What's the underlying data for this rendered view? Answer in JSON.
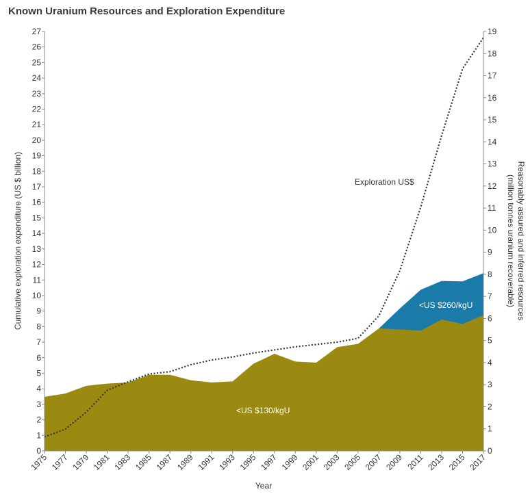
{
  "chart_data": {
    "type": "area",
    "title": "Known Uranium Resources and Exploration Expenditure",
    "xlabel": "Year",
    "ylabel_left": "Cumulative exploration expenditure (US $ billion)",
    "ylabel_right_line1": "Reasonably assured and inferred resources",
    "ylabel_right_line2": "(million tonnes uranium recoverable)",
    "ylim_left": [
      0,
      27
    ],
    "ylim_right": [
      0,
      19
    ],
    "x_ticks": [
      "1975",
      "1977",
      "1979",
      "1981",
      "1983",
      "1985",
      "1987",
      "1989",
      "1991",
      "1993",
      "1995",
      "1997",
      "1999",
      "2001",
      "2003",
      "2005",
      "2007",
      "2009",
      "2011",
      "2013",
      "2015",
      "2017"
    ],
    "left_ticks": [
      "0",
      "1",
      "2",
      "3",
      "4",
      "5",
      "6",
      "7",
      "8",
      "9",
      "10",
      "11",
      "12",
      "13",
      "14",
      "15",
      "16",
      "17",
      "18",
      "19",
      "20",
      "21",
      "22",
      "23",
      "24",
      "25",
      "26",
      "27"
    ],
    "right_ticks": [
      "0",
      "1",
      "2",
      "3",
      "4",
      "5",
      "6",
      "7",
      "8",
      "9",
      "10",
      "11",
      "12",
      "13",
      "14",
      "15",
      "16",
      "17",
      "18",
      "19"
    ],
    "series": [
      {
        "name": "<US $130/kgU",
        "kind": "area",
        "axis": "right",
        "color": "#9a8a12",
        "x": [
          1975,
          1977,
          1979,
          1981,
          1983,
          1985,
          1987,
          1989,
          1991,
          1993,
          1995,
          1997,
          1999,
          2001,
          2003,
          2005,
          2007,
          2009,
          2011,
          2013,
          2015,
          2017
        ],
        "values": [
          2.45,
          2.6,
          2.95,
          3.05,
          3.1,
          3.45,
          3.45,
          3.2,
          3.1,
          3.15,
          3.95,
          4.4,
          4.05,
          4.0,
          4.7,
          4.85,
          5.55,
          5.5,
          5.45,
          5.95,
          5.75,
          6.15
        ]
      },
      {
        "name": "<US $260/kgU",
        "kind": "area",
        "axis": "right",
        "color": "#1a7aa8",
        "x": [
          2007,
          2009,
          2011,
          2013,
          2015,
          2017
        ],
        "values": [
          5.55,
          6.45,
          7.3,
          7.7,
          7.68,
          8.05
        ]
      },
      {
        "name": "Exploration US$",
        "kind": "line",
        "axis": "left",
        "color": "#333333",
        "x": [
          1975,
          1977,
          1979,
          1981,
          1983,
          1985,
          1987,
          1989,
          1991,
          1993,
          1995,
          1997,
          1999,
          2001,
          2003,
          2005,
          2007,
          2009,
          2011,
          2013,
          2015,
          2017
        ],
        "values": [
          0.9,
          1.4,
          2.5,
          3.9,
          4.45,
          4.95,
          5.1,
          5.55,
          5.85,
          6.05,
          6.3,
          6.5,
          6.7,
          6.85,
          7.0,
          7.25,
          8.7,
          11.6,
          15.7,
          20.3,
          24.6,
          26.6
        ]
      }
    ],
    "annotations": {
      "exploration_label": "Exploration US$",
      "low_label": "<US $130/kgU",
      "high_label": "<US $260/kgU"
    }
  }
}
